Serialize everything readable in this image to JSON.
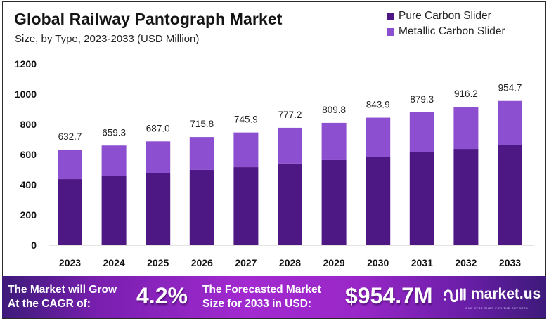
{
  "header": {
    "title": "Global Railway Pantograph Market",
    "subtitle": "Size, by Type, 2023-2033 (USD Million)"
  },
  "legend": [
    {
      "label": "Pure Carbon Slider",
      "color": "#4e1884"
    },
    {
      "label": "Metallic Carbon Slider",
      "color": "#8c4fcf"
    }
  ],
  "chart_data": {
    "type": "bar",
    "stacked": true,
    "title": "Global Railway Pantograph Market",
    "subtitle": "Size, by Type, 2023-2033 (USD Million)",
    "xlabel": "",
    "ylabel": "",
    "categories": [
      "2023",
      "2024",
      "2025",
      "2026",
      "2027",
      "2028",
      "2029",
      "2030",
      "2031",
      "2032",
      "2033"
    ],
    "series": [
      {
        "name": "Pure Carbon Slider",
        "color": "#4e1884",
        "values": [
          437,
          456,
          479,
          498,
          516,
          540,
          563,
          586,
          614,
          637,
          665
        ]
      },
      {
        "name": "Metallic Carbon Slider",
        "color": "#8c4fcf",
        "values": [
          195.7,
          203.3,
          208.0,
          217.8,
          229.9,
          237.2,
          246.8,
          257.9,
          265.3,
          279.2,
          289.7
        ]
      }
    ],
    "totals": [
      632.7,
      659.3,
      687.0,
      715.8,
      745.9,
      777.2,
      809.8,
      843.9,
      879.3,
      916.2,
      954.7
    ],
    "total_labels": [
      "632.7",
      "659.3",
      "687.0",
      "715.8",
      "745.9",
      "777.2",
      "809.8",
      "843.9",
      "879.3",
      "916.2",
      "954.7"
    ],
    "yticks": [
      0,
      200,
      400,
      600,
      800,
      1000,
      1200
    ],
    "ylim": [
      0,
      1200
    ],
    "grid": false,
    "legend_position": "top-right"
  },
  "banner": {
    "cagr_text_line1": "The Market will Grow",
    "cagr_text_line2": "At the CAGR of:",
    "cagr_value": "4.2%",
    "forecast_text_line1": "The Forecasted Market",
    "forecast_text_line2": "Size for 2033 in USD:",
    "forecast_value": "$954.7M",
    "brand_name": "market.us",
    "brand_tagline": "ONE STOP SHOP FOR THE REPORTS"
  }
}
